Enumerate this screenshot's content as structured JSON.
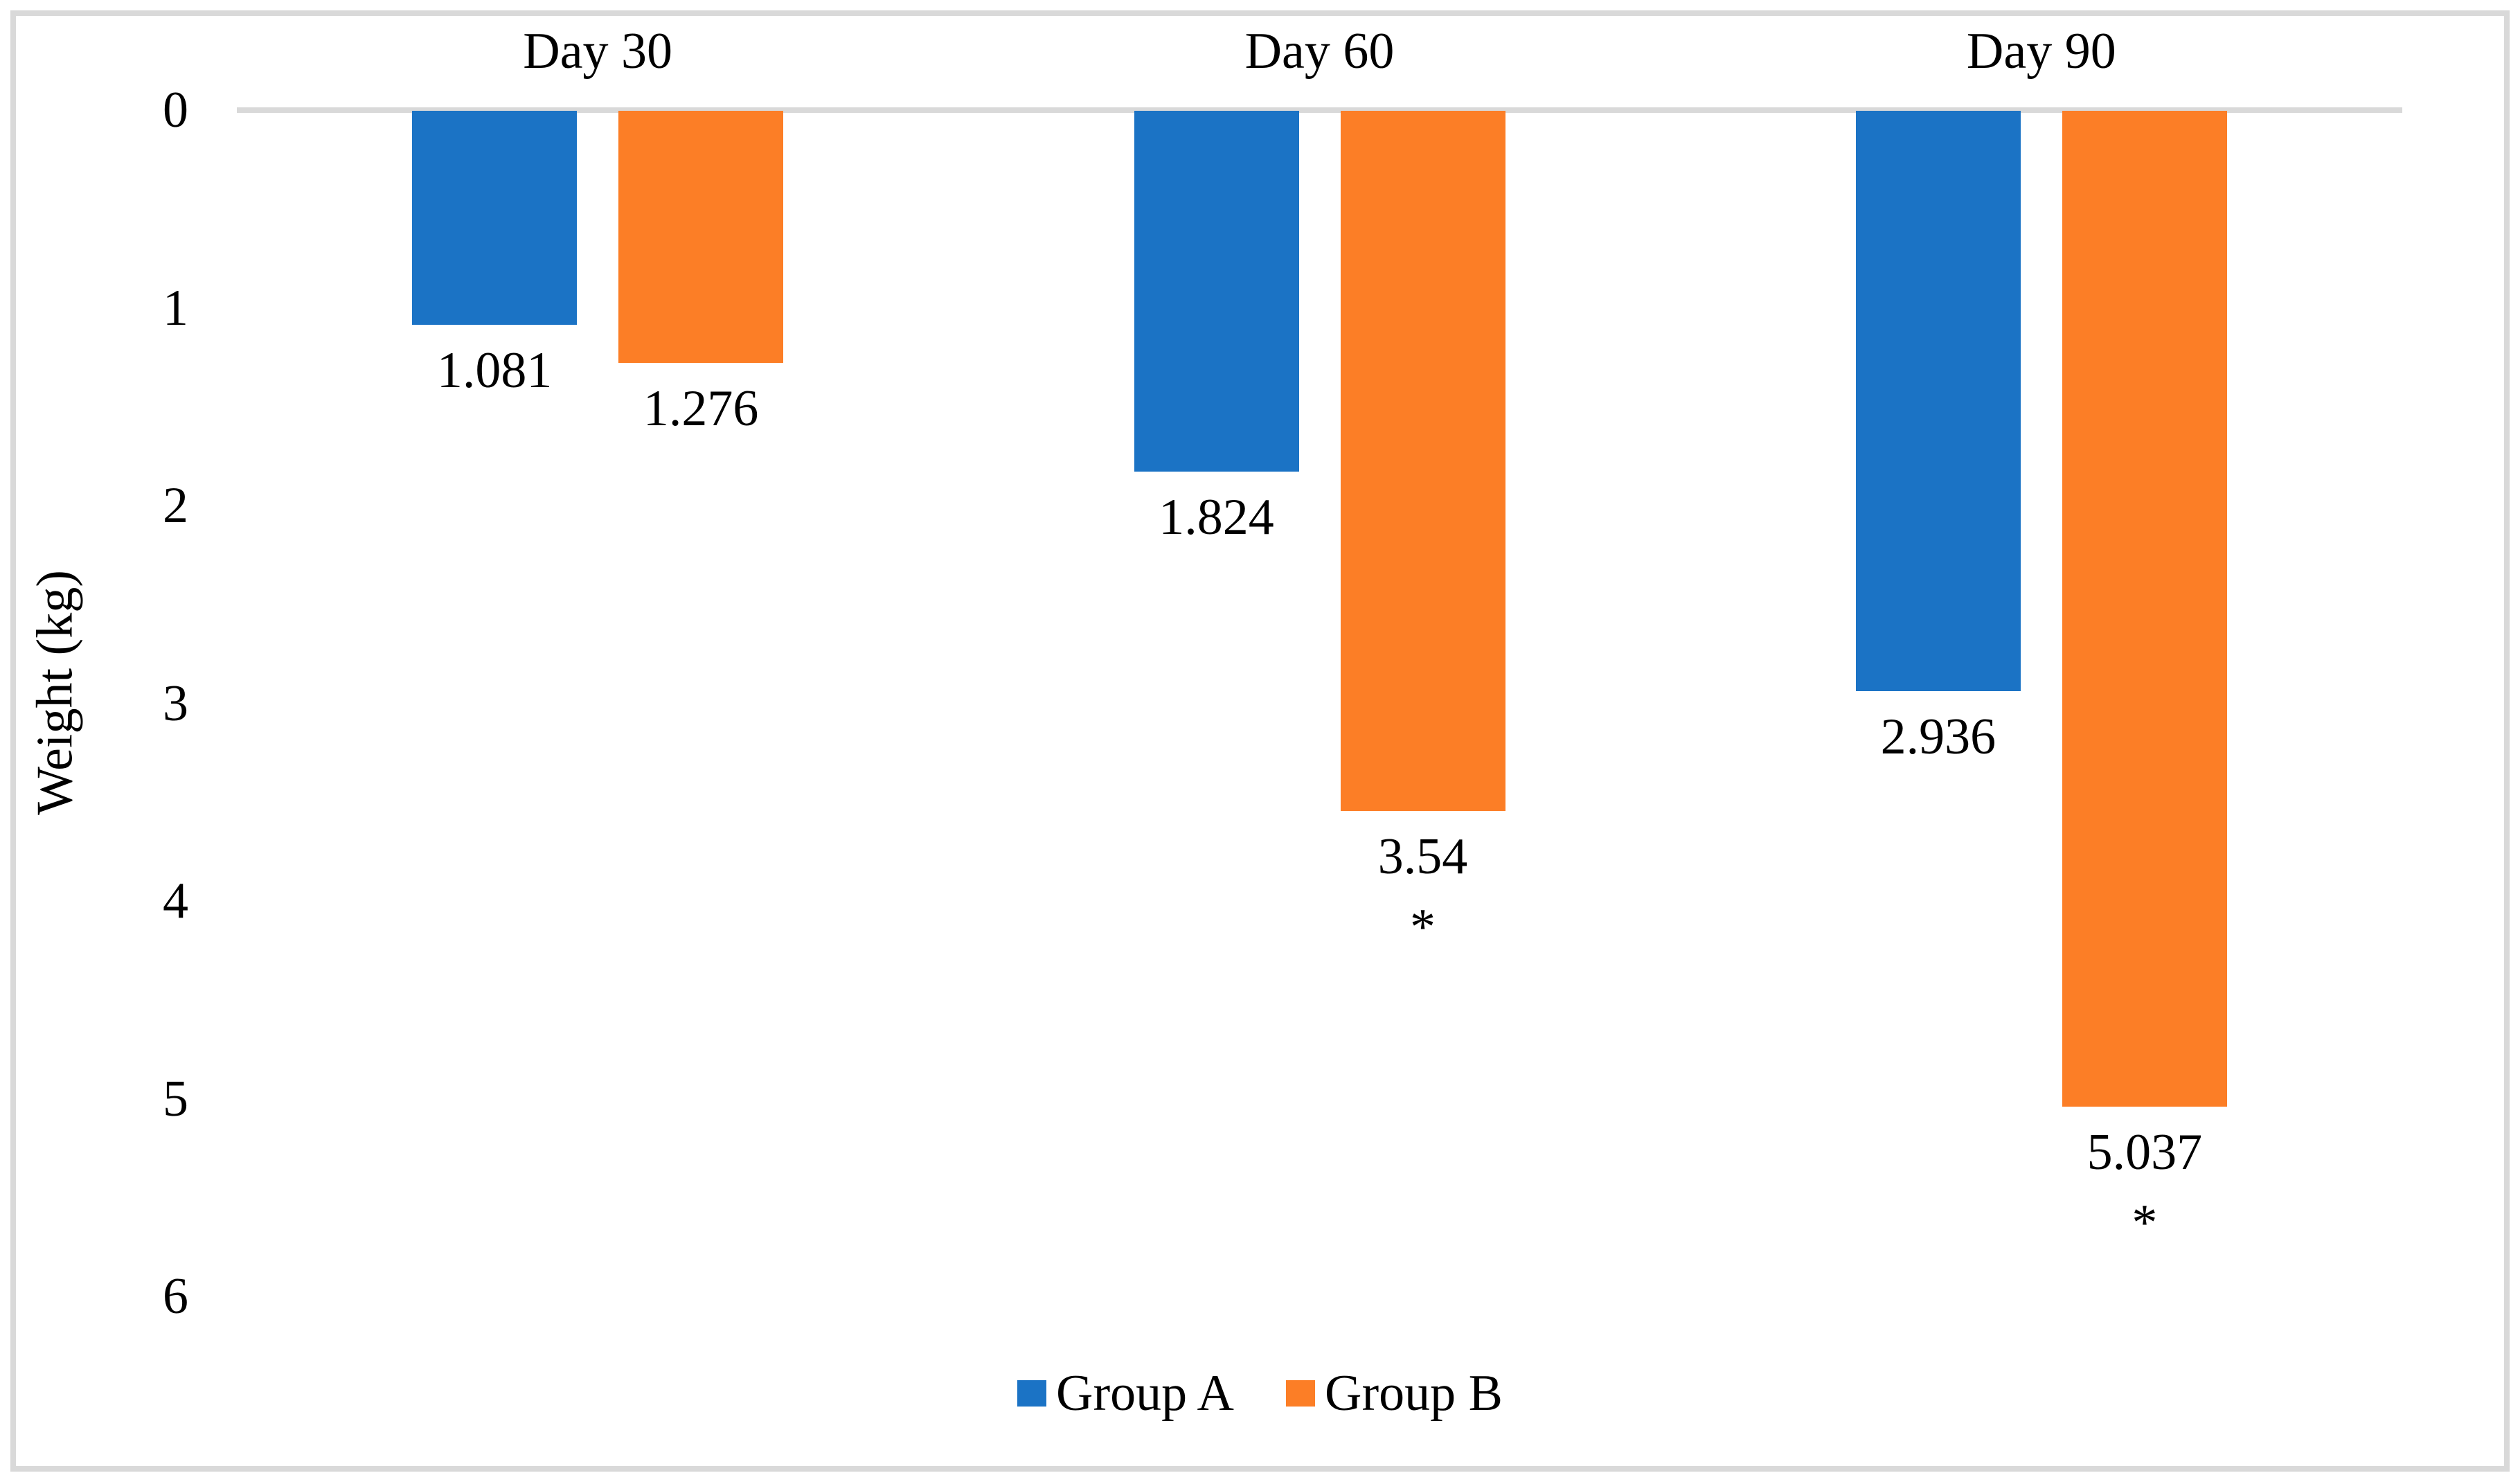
{
  "chart_data": {
    "type": "bar",
    "title": "",
    "categories": [
      "Day 30",
      "Day 60",
      "Day 90"
    ],
    "series": [
      {
        "name": "Group A",
        "color": "#1B73C5",
        "values": [
          1.081,
          1.824,
          2.936
        ],
        "data_labels": [
          "1.081",
          "1.824",
          "2.936"
        ],
        "markers": [
          "",
          "",
          ""
        ]
      },
      {
        "name": "Group B",
        "color": "#FC7E26",
        "values": [
          1.276,
          3.54,
          5.037
        ],
        "data_labels": [
          "1.276",
          "3.54",
          "5.037"
        ],
        "markers": [
          "",
          "*",
          "*"
        ]
      }
    ],
    "xlabel": "",
    "ylabel": "Weight (kg)",
    "yticks": [
      "0",
      "1",
      "2",
      "3",
      "4",
      "5",
      "6"
    ],
    "ylim": [
      0,
      6
    ],
    "axis_inverted": true,
    "bar_direction": "downward-from-zero-line",
    "grid": false,
    "legend": {
      "position": "bottom-center"
    }
  },
  "colors": {
    "group_a": "#1B73C5",
    "group_b": "#FC7E26",
    "axis_line": "#D9D9D9",
    "frame_border": "#D9D9D9",
    "text": "#000000",
    "background": "#FFFFFF"
  }
}
